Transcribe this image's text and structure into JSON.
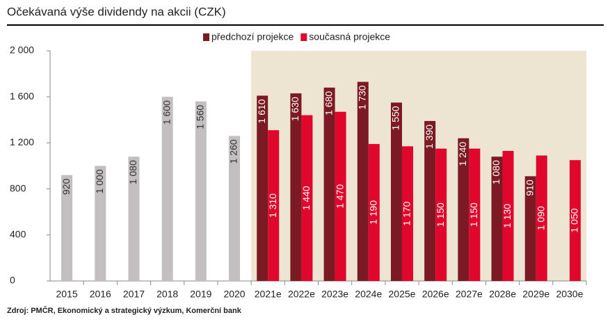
{
  "chart_data": {
    "type": "bar",
    "title": "Očekávaná výše dividendy na akcii (CZK)",
    "source": "Zdroj: PMČR, Ekonomický a strategický výzkum, Komerční bank",
    "categories": [
      "2015",
      "2016",
      "2017",
      "2018",
      "2019",
      "2020",
      "2021e",
      "2022e",
      "2023e",
      "2024e",
      "2025e",
      "2026e",
      "2027e",
      "2028e",
      "2029e",
      "2030e"
    ],
    "series": [
      {
        "color": "#c3bfc0",
        "values": [
          920,
          1000,
          1080,
          1600,
          1560,
          1260,
          null,
          null,
          null,
          null,
          null,
          null,
          null,
          null,
          null,
          null
        ],
        "value_labels": [
          "920",
          "1 000",
          "1 080",
          "1 600",
          "1 560",
          "1 260",
          null,
          null,
          null,
          null,
          null,
          null,
          null,
          null,
          null,
          null
        ]
      },
      {
        "name": "předchozí projekce",
        "color": "#7b1a22",
        "values": [
          null,
          null,
          null,
          null,
          null,
          null,
          1610,
          1630,
          1680,
          1730,
          1550,
          1390,
          1240,
          1080,
          910,
          null
        ],
        "value_labels": [
          null,
          null,
          null,
          null,
          null,
          null,
          "1 610",
          "1 630",
          "1 680",
          "1 730",
          "1 550",
          "1 390",
          "1 240",
          "1 080",
          "910",
          null
        ]
      },
      {
        "name": "současná projekce",
        "color": "#e1062b",
        "values": [
          null,
          null,
          null,
          null,
          null,
          null,
          1310,
          1440,
          1470,
          1190,
          1170,
          1150,
          1150,
          1130,
          1090,
          1050
        ],
        "value_labels": [
          null,
          null,
          null,
          null,
          null,
          null,
          "1 310",
          "1 440",
          "1 470",
          "1 190",
          "1 170",
          "1 150",
          "1 150",
          "1 130",
          "1 090",
          "1 050"
        ]
      }
    ],
    "ylim": [
      0,
      2000
    ],
    "yticks": [
      0,
      400,
      800,
      {
        "value": 1200,
        "label": "1 200"
      },
      {
        "value": 1600,
        "label": "1 600"
      },
      {
        "value": 2000,
        "label": "2 000"
      }
    ],
    "shade_color": "#ede4d2"
  }
}
